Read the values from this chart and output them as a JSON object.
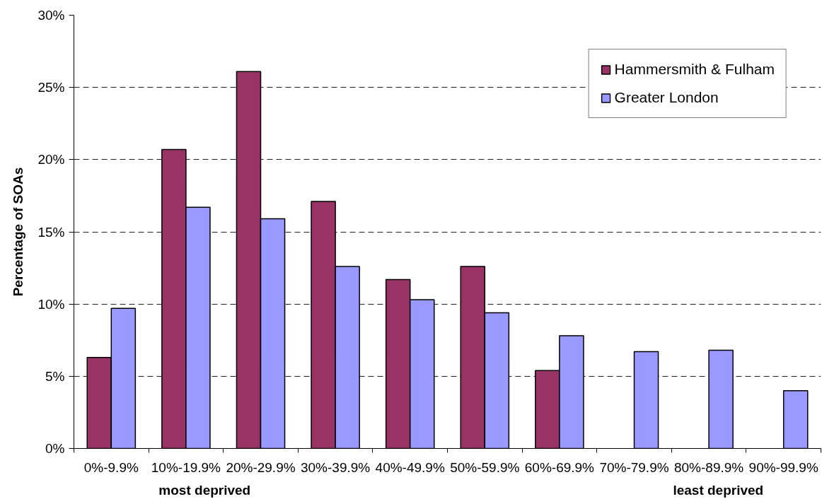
{
  "chart_data": {
    "type": "bar",
    "ylabel": "Percentage of SOAs",
    "categories": [
      "0%-9.9%",
      "10%-19.9%",
      "20%-29.9%",
      "30%-39.9%",
      "40%-49.9%",
      "50%-59.9%",
      "60%-69.9%",
      "70%-79.9%",
      "80%-89.9%",
      "90%-99.9%"
    ],
    "series": [
      {
        "name": "Hammersmith & Fulham",
        "color": "#993366",
        "values": [
          6.3,
          20.7,
          26.1,
          17.1,
          11.7,
          12.6,
          5.4,
          null,
          null,
          null
        ]
      },
      {
        "name": "Greater London",
        "color": "#9999ff",
        "values": [
          9.7,
          16.7,
          15.9,
          12.6,
          10.3,
          9.4,
          7.8,
          6.7,
          6.8,
          4.0
        ]
      }
    ],
    "ylim": [
      0,
      30
    ],
    "yticks": [
      {
        "value": 0,
        "label": "0%"
      },
      {
        "value": 5,
        "label": "5%"
      },
      {
        "value": 10,
        "label": "10%"
      },
      {
        "value": 15,
        "label": "15%"
      },
      {
        "value": 20,
        "label": "20%"
      },
      {
        "value": 25,
        "label": "25%"
      },
      {
        "value": 30,
        "label": "30%"
      }
    ],
    "grid": "y",
    "legend": "top right",
    "annotations": [
      "most deprived",
      "least deprived"
    ]
  }
}
